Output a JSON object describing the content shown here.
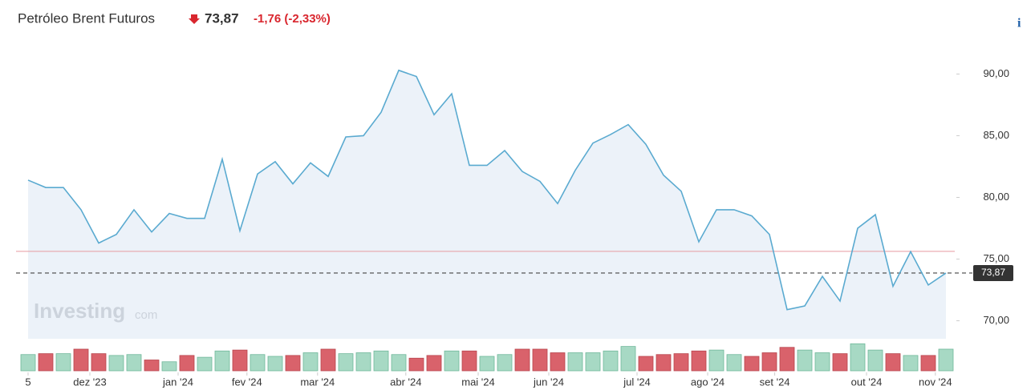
{
  "chart_data": {
    "type": "line",
    "title": "Petróleo Brent Futuros",
    "price": "73,87",
    "change": "-1,76 (-2,33%)",
    "info": "i",
    "watermark": "Investing",
    "watermark_suffix": "com",
    "color": "#5aaad0",
    "up_color": "#a7d9c4",
    "down_color": "#d9626b",
    "values": [
      81.4,
      80.8,
      80.8,
      79.0,
      76.3,
      77.0,
      79.0,
      77.2,
      78.7,
      78.3,
      78.3,
      83.1,
      77.3,
      81.9,
      82.9,
      81.1,
      82.8,
      81.7,
      84.9,
      85.0,
      86.9,
      90.3,
      89.8,
      86.7,
      88.4,
      82.6,
      82.6,
      83.8,
      82.1,
      81.3,
      79.5,
      82.2,
      84.4,
      85.1,
      85.9,
      84.3,
      81.8,
      80.5,
      76.4,
      79.0,
      79.0,
      78.5,
      77.0,
      70.9,
      71.2,
      73.6,
      71.6,
      77.5,
      78.6,
      72.8,
      75.6,
      72.9,
      73.87
    ],
    "volume": [
      18,
      19,
      19,
      24,
      19,
      17,
      18,
      12,
      10,
      17,
      15,
      22,
      23,
      18,
      16,
      17,
      20,
      24,
      19,
      20,
      22,
      18,
      14,
      17,
      22,
      22,
      16,
      18,
      24,
      24,
      20,
      20,
      20,
      22,
      27,
      16,
      18,
      19,
      22,
      23,
      18,
      16,
      20,
      26,
      23,
      20,
      19,
      30,
      23,
      19,
      17,
      17,
      24
    ],
    "vlim": [
      0,
      40
    ],
    "xlim": [
      0,
      52
    ],
    "xticks": [
      {
        "value": 0,
        "label": "5"
      },
      {
        "value": 3.5,
        "label": "dez '23"
      },
      {
        "value": 8.5,
        "label": "jan '24"
      },
      {
        "value": 12.4,
        "label": "fev '24"
      },
      {
        "value": 16.4,
        "label": "mar '24"
      },
      {
        "value": 21.4,
        "label": "abr '24"
      },
      {
        "value": 25.5,
        "label": "mai '24"
      },
      {
        "value": 29.5,
        "label": "jun '24"
      },
      {
        "value": 34.5,
        "label": "jul '24"
      },
      {
        "value": 38.5,
        "label": "ago '24"
      },
      {
        "value": 42.3,
        "label": "set '24"
      },
      {
        "value": 47.5,
        "label": "out '24"
      },
      {
        "value": 51.4,
        "label": "nov '24"
      }
    ],
    "ylim": [
      67.7,
      92.3
    ],
    "yticks": [
      {
        "value": 70,
        "label": "70,00"
      },
      {
        "value": 75,
        "label": "75,00"
      },
      {
        "value": 80,
        "label": "80,00"
      },
      {
        "value": 85,
        "label": "85,00"
      },
      {
        "value": 90,
        "label": "90,00"
      }
    ],
    "reference_line": 75.63,
    "last": {
      "value": 73.87,
      "label": "73,87"
    }
  }
}
